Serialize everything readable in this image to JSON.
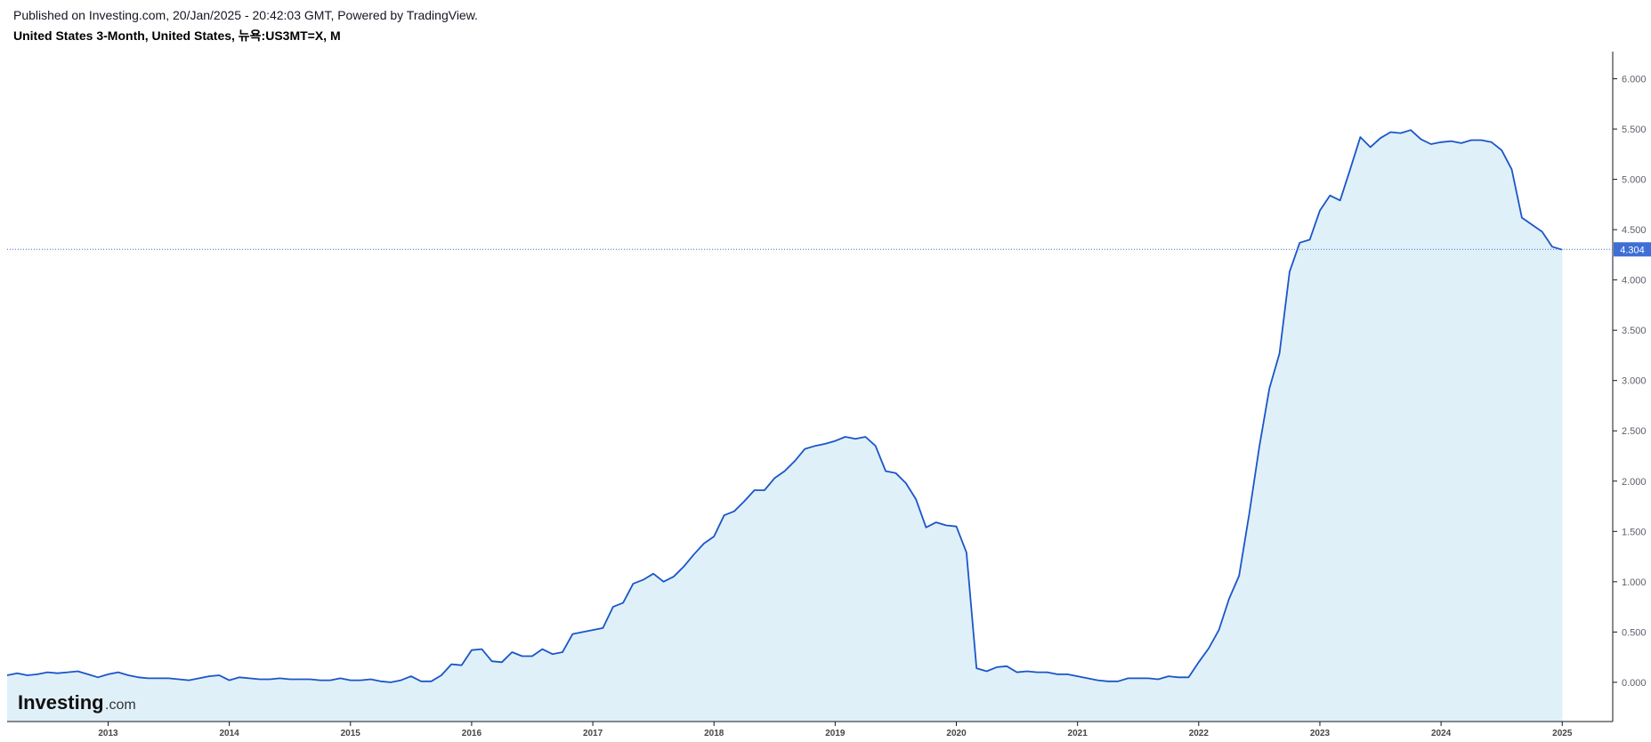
{
  "header": {
    "published": "Published on Investing.com, 20/Jan/2025 - 20:42:03 GMT, Powered by TradingView.",
    "symbol": "United States 3-Month, United States, 뉴욕:US3MT=X, M"
  },
  "logo": {
    "main": "Investing",
    "suffix": ".com"
  },
  "colors": {
    "line": "#1a56c8",
    "area": "#e0f0f9",
    "last_price_label": "#3e6fd6",
    "axis": "#131722"
  },
  "chart_data": {
    "type": "area",
    "title": "United States 3-Month, United States, 뉴욕:US3MT=X, M",
    "interval": "M",
    "xlabel": "",
    "ylabel": "",
    "ylim": [
      -0.39,
      6.27
    ],
    "x_range": [
      "2012-03",
      "2025-06"
    ],
    "y_ticks": [
      "6.000",
      "5.500",
      "5.000",
      "4.500",
      "4.000",
      "3.500",
      "3.000",
      "2.500",
      "2.000",
      "1.500",
      "1.000",
      "0.500",
      "0.000"
    ],
    "x_ticks": [
      "2013",
      "2014",
      "2015",
      "2016",
      "2017",
      "2018",
      "2019",
      "2020",
      "2021",
      "2022",
      "2023",
      "2024",
      "2025"
    ],
    "last_value": "4.304",
    "grid": false,
    "y_axis_position": "right",
    "series": [
      {
        "start": "2012-03",
        "values": [
          0.07,
          0.09,
          0.07,
          0.08,
          0.1,
          0.09,
          0.1,
          0.11,
          0.08,
          0.05,
          0.08,
          0.1,
          0.07,
          0.05,
          0.04,
          0.04,
          0.04,
          0.03,
          0.02,
          0.04,
          0.06,
          0.07,
          0.02,
          0.05,
          0.04,
          0.03,
          0.03,
          0.04,
          0.03,
          0.03,
          0.03,
          0.02,
          0.02,
          0.04,
          0.02,
          0.02,
          0.03,
          0.01,
          0.0,
          0.02,
          0.06,
          0.01,
          0.01,
          0.07,
          0.18,
          0.17,
          0.32,
          0.33,
          0.21,
          0.2,
          0.3,
          0.26,
          0.26,
          0.33,
          0.28,
          0.3,
          0.48,
          0.5,
          0.52,
          0.54,
          0.75,
          0.79,
          0.98,
          1.02,
          1.08,
          1.0,
          1.05,
          1.15,
          1.27,
          1.38,
          1.45,
          1.66,
          1.7,
          1.8,
          1.91,
          1.91,
          2.03,
          2.1,
          2.2,
          2.32,
          2.35,
          2.37,
          2.4,
          2.44,
          2.42,
          2.44,
          2.35,
          2.1,
          2.08,
          1.98,
          1.82,
          1.54,
          1.59,
          1.56,
          1.55,
          1.29,
          0.14,
          0.11,
          0.15,
          0.16,
          0.1,
          0.11,
          0.1,
          0.1,
          0.08,
          0.08,
          0.06,
          0.04,
          0.02,
          0.01,
          0.01,
          0.04,
          0.04,
          0.04,
          0.03,
          0.06,
          0.05,
          0.05,
          0.2,
          0.34,
          0.52,
          0.83,
          1.06,
          1.67,
          2.34,
          2.92,
          3.27,
          4.08,
          4.37,
          4.4,
          4.69,
          4.84,
          4.79,
          5.1,
          5.42,
          5.32,
          5.41,
          5.47,
          5.46,
          5.49,
          5.4,
          5.35,
          5.37,
          5.38,
          5.36,
          5.39,
          5.39,
          5.37,
          5.29,
          5.1,
          4.62,
          4.55,
          4.48,
          4.33,
          4.3
        ]
      }
    ]
  }
}
